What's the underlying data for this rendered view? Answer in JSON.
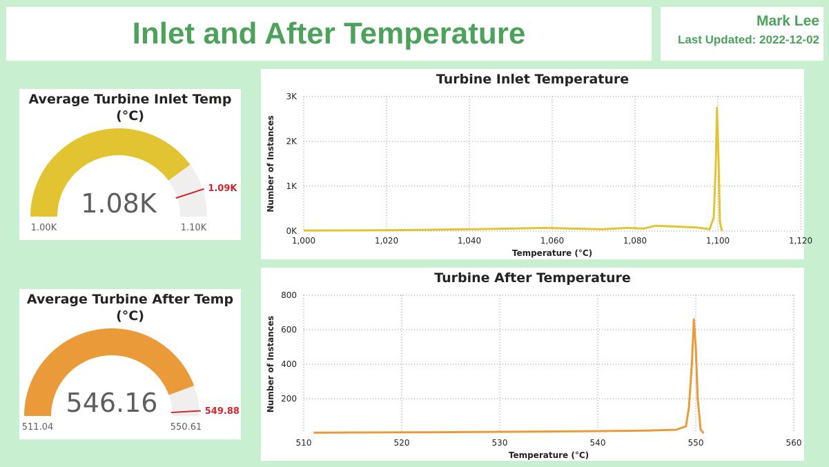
{
  "header": {
    "title": "Inlet and After Temperature",
    "author": "Mark Lee",
    "last_updated": "Last Updated: 2022-12-02"
  },
  "colors": {
    "accent": "#4ca25a",
    "inlet": "#e2c433",
    "after": "#eb9a3a",
    "target": "#d0262e",
    "track": "#f1efee"
  },
  "gauges": [
    {
      "title_line1": "Average Turbine Inlet Temp",
      "title_line2": "(°C)",
      "value": 1080,
      "value_label": "1.08K",
      "min": 1000,
      "min_label": "1.00K",
      "max": 1100,
      "max_label": "1.10K",
      "target": 1090,
      "target_label": "1.09K"
    },
    {
      "title_line1": "Average Turbine After Temp",
      "title_line2": "(°C)",
      "value": 546.16,
      "value_label": "546.16",
      "min": 511.04,
      "min_label": "511.04",
      "max": 550.61,
      "max_label": "550.61",
      "target": 549.88,
      "target_label": "549.88"
    }
  ],
  "chart_data": [
    {
      "type": "line",
      "title": "Turbine Inlet Temperature",
      "xlabel": "Temperature (°C)",
      "ylabel": "Number of Instances",
      "xlim": [
        1000,
        1120
      ],
      "ylim": [
        0,
        3000
      ],
      "x_ticks": [
        1000,
        1020,
        1040,
        1060,
        1080,
        1100,
        1120
      ],
      "x_tick_labels": [
        "1,000",
        "1,020",
        "1,040",
        "1,060",
        "1,080",
        "1,100",
        "1,120"
      ],
      "y_ticks": [
        0,
        1000,
        2000,
        3000
      ],
      "y_tick_labels": [
        "0K",
        "1K",
        "2K",
        "3K"
      ],
      "grid": true,
      "series": [
        {
          "color": "#e2c433",
          "x": [
            1000,
            1010,
            1020,
            1030,
            1040,
            1050,
            1058,
            1065,
            1072,
            1078,
            1082,
            1085,
            1090,
            1095,
            1098,
            1099,
            1099.5,
            1099.8,
            1100.2,
            1100.5,
            1101
          ],
          "y": [
            10,
            15,
            20,
            30,
            40,
            55,
            70,
            55,
            40,
            70,
            55,
            120,
            100,
            80,
            40,
            300,
            1500,
            2750,
            1500,
            200,
            0
          ]
        }
      ]
    },
    {
      "type": "line",
      "title": "Turbine After Temperature",
      "xlabel": "Temperature (°C)",
      "ylabel": "Number of Instances",
      "xlim": [
        510,
        560
      ],
      "ylim": [
        0,
        800
      ],
      "x_ticks": [
        510,
        520,
        530,
        540,
        550,
        560
      ],
      "x_tick_labels": [
        "510",
        "520",
        "530",
        "540",
        "550",
        "560"
      ],
      "y_ticks": [
        200,
        400,
        600,
        800
      ],
      "y_tick_labels": [
        "200",
        "400",
        "600",
        "800"
      ],
      "grid": true,
      "series": [
        {
          "color": "#eb9a3a",
          "x": [
            511,
            515,
            520,
            525,
            530,
            535,
            540,
            545,
            548,
            549,
            549.3,
            549.6,
            549.8,
            550,
            550.2,
            550.5,
            550.8
          ],
          "y": [
            3,
            4,
            5,
            6,
            8,
            10,
            12,
            15,
            20,
            40,
            150,
            400,
            660,
            500,
            200,
            20,
            0
          ]
        }
      ]
    }
  ]
}
